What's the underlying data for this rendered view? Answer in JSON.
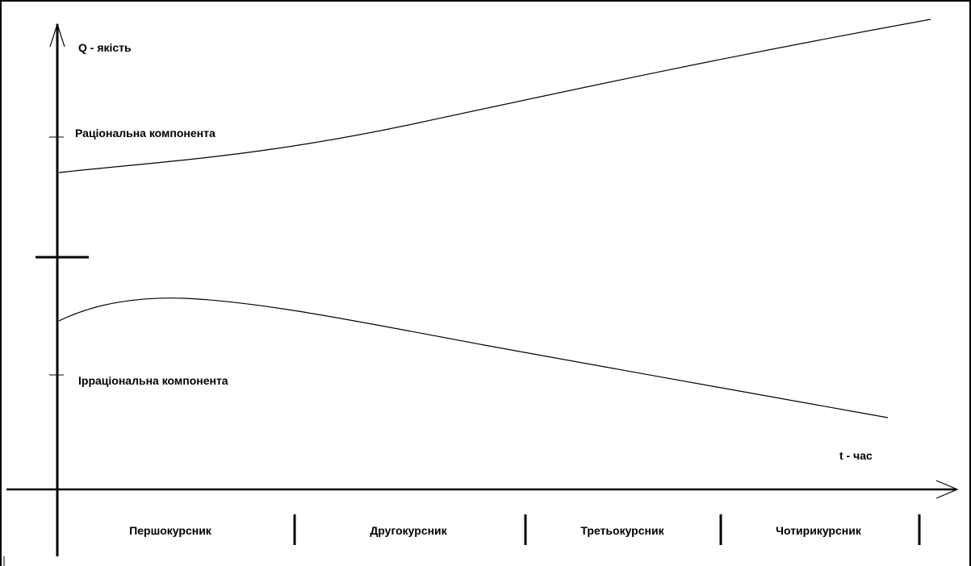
{
  "axes": {
    "y_label": "Q - якість",
    "x_label": "t - час"
  },
  "curves": {
    "rational": {
      "label": "Раціональна компонента"
    },
    "irrational": {
      "label": "Ірраціональна компонента"
    }
  },
  "stages": [
    "Першокурсник",
    "Другокурсник",
    "Третьокурсник",
    "Чотирикурсник"
  ],
  "colors": {
    "stroke": "#000000",
    "background": "#ffffff"
  }
}
